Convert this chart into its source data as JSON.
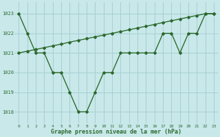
{
  "line1_x": [
    0,
    1,
    2,
    3,
    4,
    5,
    6,
    7,
    8,
    9,
    10,
    11,
    12,
    13,
    14,
    15,
    16,
    17,
    18,
    19,
    20,
    21,
    22,
    23
  ],
  "line1_y": [
    1023,
    1022,
    1021,
    1021,
    1020,
    1020,
    1019,
    1018,
    1018,
    1019,
    1020,
    1020,
    1021,
    1021,
    1021,
    1021,
    1021,
    1022,
    1022,
    1021,
    1022,
    1022,
    1023,
    1023
  ],
  "line2_x": [
    0,
    1,
    2,
    3,
    4,
    5,
    6,
    7,
    8,
    9,
    10,
    11,
    12,
    13,
    14,
    15,
    16,
    17,
    18,
    19,
    20,
    21,
    22,
    23
  ],
  "line2_y": [
    1021.0,
    1021.09,
    1021.18,
    1021.27,
    1021.36,
    1021.45,
    1021.55,
    1021.64,
    1021.73,
    1021.82,
    1021.91,
    1022.0,
    1022.09,
    1022.18,
    1022.27,
    1022.36,
    1022.45,
    1022.55,
    1022.64,
    1022.73,
    1022.82,
    1022.91,
    1023.0,
    1023.0
  ],
  "line_color": "#2d6a2d",
  "bg_color": "#c8e8ea",
  "grid_color": "#a8cfd2",
  "xlabel": "Graphe pression niveau de la mer (hPa)",
  "ylim": [
    1017.4,
    1023.6
  ],
  "yticks": [
    1018,
    1019,
    1020,
    1021,
    1022,
    1023
  ],
  "xticks": [
    0,
    1,
    2,
    3,
    4,
    5,
    6,
    7,
    8,
    9,
    10,
    11,
    12,
    13,
    14,
    15,
    16,
    17,
    18,
    19,
    20,
    21,
    22,
    23
  ],
  "marker": "D",
  "markersize": 2.0,
  "linewidth": 1.0
}
